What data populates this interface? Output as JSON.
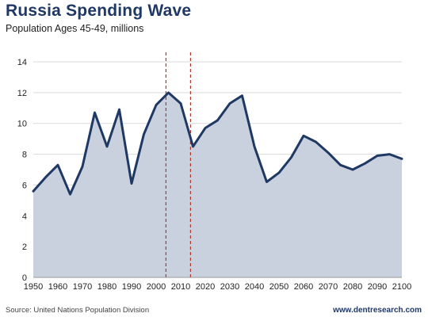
{
  "header": {
    "title": "Russia Spending Wave",
    "subtitle": "Population Ages 45-49, millions"
  },
  "footer": {
    "source": "Source: United Nations Population Division",
    "site": "www.dentresearch.com"
  },
  "colors": {
    "title": "#1f3864",
    "line": "#1f3864",
    "area": "#c9d1de",
    "marker_line": "#b03a2e",
    "grid": "#d9d9d9"
  },
  "chart_data": {
    "type": "area",
    "title": "Russia Spending Wave",
    "subtitle": "Population Ages 45-49, millions",
    "x": [
      1950,
      1955,
      1960,
      1965,
      1970,
      1975,
      1980,
      1985,
      1990,
      1995,
      2000,
      2005,
      2010,
      2015,
      2020,
      2025,
      2030,
      2035,
      2040,
      2045,
      2050,
      2055,
      2060,
      2065,
      2070,
      2075,
      2080,
      2085,
      2090,
      2095,
      2100
    ],
    "series": [
      {
        "values": [
          5.6,
          6.5,
          7.3,
          5.4,
          7.2,
          10.7,
          8.5,
          10.9,
          6.1,
          9.3,
          11.2,
          12.0,
          11.3,
          8.5,
          9.7,
          10.2,
          11.3,
          11.8,
          8.5,
          6.2,
          6.8,
          7.8,
          9.2,
          8.8,
          8.1,
          7.3,
          7.0,
          7.4,
          7.9,
          8.0,
          7.7
        ]
      }
    ],
    "xlim": [
      1950,
      2100
    ],
    "ylim": [
      0,
      14
    ],
    "x_ticks": [
      "1950",
      "1960",
      "1970",
      "1980",
      "1990",
      "2000",
      "2010",
      "2020",
      "2030",
      "2040",
      "2050",
      "2060",
      "2070",
      "2080",
      "2090",
      "2100"
    ],
    "y_ticks": [
      "0",
      "2",
      "4",
      "6",
      "8",
      "10",
      "12",
      "14"
    ],
    "reference_lines": [
      2004,
      2014
    ],
    "grid": "horizontal",
    "legend": "none"
  }
}
